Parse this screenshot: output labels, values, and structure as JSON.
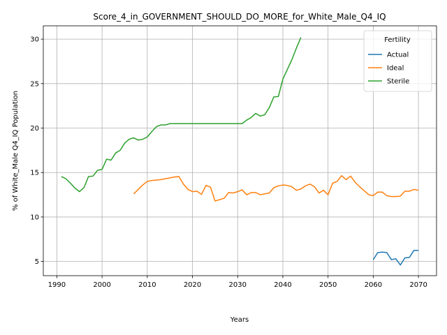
{
  "chart_data": {
    "type": "line",
    "title": "Score_4_in_GOVERNMENT_SHOULD_DO_MORE_for_White_Male_Q4_IQ",
    "xlabel": "Years",
    "ylabel": "% of White_Male Q4_IQ Population",
    "xlim": [
      1987,
      2074
    ],
    "ylim": [
      3.4,
      31.5
    ],
    "xticks": [
      1990,
      2000,
      2010,
      2020,
      2030,
      2040,
      2050,
      2060,
      2070
    ],
    "yticks": [
      5,
      10,
      15,
      20,
      25,
      30
    ],
    "grid": true,
    "legend": {
      "title": "Fertility",
      "placement": "top-right"
    },
    "series": [
      {
        "name": "Actual",
        "color": "#1f77b4",
        "points": [
          [
            2060,
            5.2
          ],
          [
            2061,
            6.0
          ],
          [
            2062,
            6.05
          ],
          [
            2063,
            6.0
          ],
          [
            2064,
            5.2
          ],
          [
            2065,
            5.3
          ],
          [
            2066,
            4.6
          ],
          [
            2067,
            5.4
          ],
          [
            2068,
            5.45
          ],
          [
            2069,
            6.25
          ],
          [
            2070,
            6.25
          ]
        ]
      },
      {
        "name": "Ideal",
        "color": "#ff7f0e",
        "points": [
          [
            2007,
            12.6
          ],
          [
            2008,
            13.1
          ],
          [
            2009,
            13.6
          ],
          [
            2010,
            14.0
          ],
          [
            2011,
            14.1
          ],
          [
            2012,
            14.15
          ],
          [
            2013,
            14.2
          ],
          [
            2014,
            14.3
          ],
          [
            2015,
            14.4
          ],
          [
            2016,
            14.5
          ],
          [
            2017,
            14.55
          ],
          [
            2018,
            13.7
          ],
          [
            2019,
            13.1
          ],
          [
            2020,
            12.85
          ],
          [
            2021,
            12.9
          ],
          [
            2022,
            12.55
          ],
          [
            2023,
            13.55
          ],
          [
            2024,
            13.35
          ],
          [
            2025,
            11.8
          ],
          [
            2026,
            11.95
          ],
          [
            2027,
            12.1
          ],
          [
            2028,
            12.75
          ],
          [
            2029,
            12.7
          ],
          [
            2030,
            12.85
          ],
          [
            2031,
            13.05
          ],
          [
            2032,
            12.5
          ],
          [
            2033,
            12.75
          ],
          [
            2034,
            12.75
          ],
          [
            2035,
            12.5
          ],
          [
            2036,
            12.6
          ],
          [
            2037,
            12.7
          ],
          [
            2038,
            13.3
          ],
          [
            2039,
            13.5
          ],
          [
            2040,
            13.6
          ],
          [
            2041,
            13.55
          ],
          [
            2042,
            13.4
          ],
          [
            2043,
            13.0
          ],
          [
            2044,
            13.15
          ],
          [
            2045,
            13.5
          ],
          [
            2046,
            13.7
          ],
          [
            2047,
            13.4
          ],
          [
            2048,
            12.7
          ],
          [
            2049,
            13.0
          ],
          [
            2050,
            12.5
          ],
          [
            2051,
            13.8
          ],
          [
            2052,
            14.0
          ],
          [
            2053,
            14.65
          ],
          [
            2054,
            14.2
          ],
          [
            2055,
            14.6
          ],
          [
            2056,
            13.9
          ],
          [
            2057,
            13.4
          ],
          [
            2058,
            12.95
          ],
          [
            2059,
            12.5
          ],
          [
            2060,
            12.4
          ],
          [
            2061,
            12.8
          ],
          [
            2062,
            12.8
          ],
          [
            2063,
            12.4
          ],
          [
            2064,
            12.3
          ],
          [
            2065,
            12.3
          ],
          [
            2066,
            12.35
          ],
          [
            2067,
            12.9
          ],
          [
            2068,
            12.9
          ],
          [
            2069,
            13.1
          ],
          [
            2070,
            13.0
          ]
        ]
      },
      {
        "name": "Sterile",
        "color": "#2ca02c",
        "points": [
          [
            1991,
            14.55
          ],
          [
            1992,
            14.3
          ],
          [
            1993,
            13.8
          ],
          [
            1994,
            13.25
          ],
          [
            1995,
            12.85
          ],
          [
            1996,
            13.3
          ],
          [
            1997,
            14.55
          ],
          [
            1998,
            14.6
          ],
          [
            1999,
            15.25
          ],
          [
            2000,
            15.35
          ],
          [
            2001,
            16.5
          ],
          [
            2002,
            16.4
          ],
          [
            2003,
            17.2
          ],
          [
            2004,
            17.5
          ],
          [
            2005,
            18.3
          ],
          [
            2006,
            18.75
          ],
          [
            2007,
            18.9
          ],
          [
            2008,
            18.65
          ],
          [
            2009,
            18.75
          ],
          [
            2010,
            19.0
          ],
          [
            2011,
            19.6
          ],
          [
            2012,
            20.15
          ],
          [
            2013,
            20.35
          ],
          [
            2014,
            20.35
          ],
          [
            2015,
            20.5
          ],
          [
            2016,
            20.5
          ],
          [
            2017,
            20.5
          ],
          [
            2018,
            20.5
          ],
          [
            2019,
            20.5
          ],
          [
            2020,
            20.5
          ],
          [
            2021,
            20.5
          ],
          [
            2022,
            20.5
          ],
          [
            2023,
            20.5
          ],
          [
            2024,
            20.5
          ],
          [
            2025,
            20.5
          ],
          [
            2026,
            20.5
          ],
          [
            2027,
            20.5
          ],
          [
            2028,
            20.5
          ],
          [
            2029,
            20.5
          ],
          [
            2030,
            20.5
          ],
          [
            2031,
            20.5
          ],
          [
            2032,
            20.9
          ],
          [
            2033,
            21.2
          ],
          [
            2034,
            21.65
          ],
          [
            2035,
            21.35
          ],
          [
            2036,
            21.5
          ],
          [
            2037,
            22.3
          ],
          [
            2038,
            23.5
          ],
          [
            2039,
            23.55
          ],
          [
            2040,
            25.5
          ],
          [
            2041,
            26.6
          ],
          [
            2042,
            27.7
          ],
          [
            2043,
            29.0
          ],
          [
            2044,
            30.2
          ]
        ]
      }
    ]
  }
}
